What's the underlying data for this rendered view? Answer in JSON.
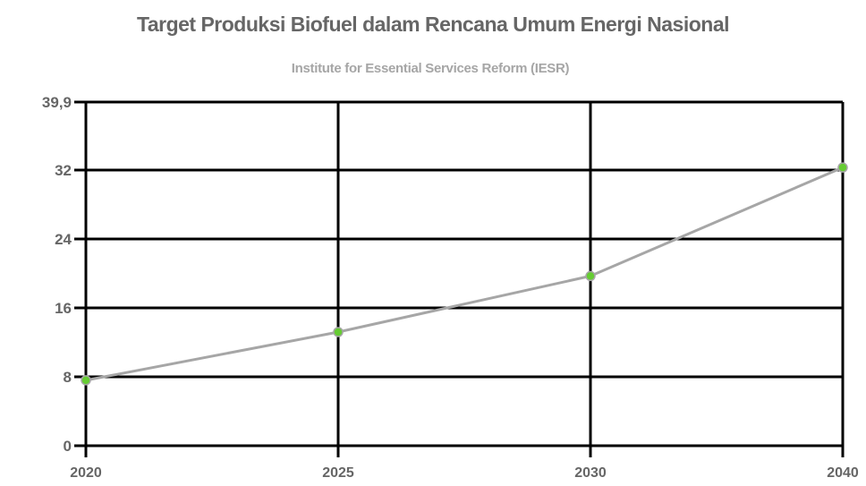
{
  "chart": {
    "title": "Target Produksi Biofuel dalam Rencana Umum Energi Nasional",
    "subtitle": "Institute for Essential Services Reform (IESR)"
  },
  "colors": {
    "line": "#a6a6a6",
    "marker": "#66cc33",
    "marker_stroke": "#a6a6a6",
    "grid": "#000000",
    "text": "#666666",
    "subtitle": "#a6a6a6"
  },
  "chart_data": {
    "type": "line",
    "title": "Target Produksi Biofuel dalam Rencana Umum Energi Nasional",
    "subtitle": "Institute for Essential Services Reform (IESR)",
    "xlabel": "",
    "ylabel": "",
    "categories": [
      "2020",
      "2025",
      "2030",
      "2040"
    ],
    "series": [
      {
        "name": "Target Produksi Biofuel",
        "values": [
          7.6,
          13.2,
          19.7,
          32.3
        ]
      }
    ],
    "y_ticks": [
      "0",
      "8",
      "16",
      "24",
      "32",
      "39,9"
    ],
    "y_tick_values": [
      0,
      8,
      16,
      24,
      32,
      39.9
    ],
    "ylim": [
      0,
      39.9
    ],
    "grid": true,
    "legend": "none"
  }
}
